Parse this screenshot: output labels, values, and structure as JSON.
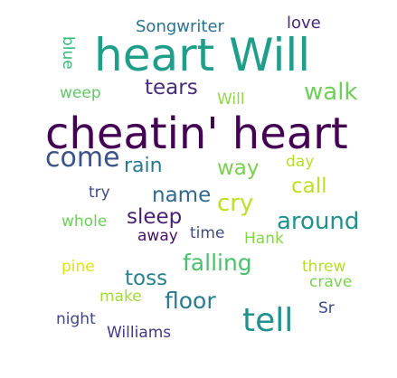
{
  "word_cloud": {
    "words": [
      {
        "text": "heart Will",
        "color": "#1f9e89"
      },
      {
        "text": "cheatin' heart",
        "color": "#440154"
      },
      {
        "text": "come",
        "color": "#3b528b"
      },
      {
        "text": "tell",
        "color": "#21918c"
      },
      {
        "text": "Songwriter",
        "color": "#2c728e"
      },
      {
        "text": "love",
        "color": "#482878"
      },
      {
        "text": "blue",
        "color": "#35b779"
      },
      {
        "text": "tears",
        "color": "#472d7b"
      },
      {
        "text": "weep",
        "color": "#5ec962"
      },
      {
        "text": "Will",
        "color": "#8fd744"
      },
      {
        "text": "walk",
        "color": "#6ece58"
      },
      {
        "text": "rain",
        "color": "#2a788e"
      },
      {
        "text": "way",
        "color": "#7ad151"
      },
      {
        "text": "day",
        "color": "#b5de2b"
      },
      {
        "text": "try",
        "color": "#3e4989"
      },
      {
        "text": "name",
        "color": "#31688e"
      },
      {
        "text": "cry",
        "color": "#bddf26"
      },
      {
        "text": "call",
        "color": "#bddf26"
      },
      {
        "text": "whole",
        "color": "#6ece58"
      },
      {
        "text": "sleep",
        "color": "#482173"
      },
      {
        "text": "time",
        "color": "#3e4989"
      },
      {
        "text": "around",
        "color": "#21918c"
      },
      {
        "text": "away",
        "color": "#471164"
      },
      {
        "text": "Hank",
        "color": "#86d549"
      },
      {
        "text": "pine",
        "color": "#dde318"
      },
      {
        "text": "falling",
        "color": "#4ac16d"
      },
      {
        "text": "threw",
        "color": "#b5de2b"
      },
      {
        "text": "toss",
        "color": "#26828e"
      },
      {
        "text": "crave",
        "color": "#7ad151"
      },
      {
        "text": "make",
        "color": "#a0da39"
      },
      {
        "text": "floor",
        "color": "#287c8e"
      },
      {
        "text": "Sr",
        "color": "#3e4989"
      },
      {
        "text": "night",
        "color": "#414487"
      },
      {
        "text": "Williams",
        "color": "#443983"
      }
    ]
  }
}
